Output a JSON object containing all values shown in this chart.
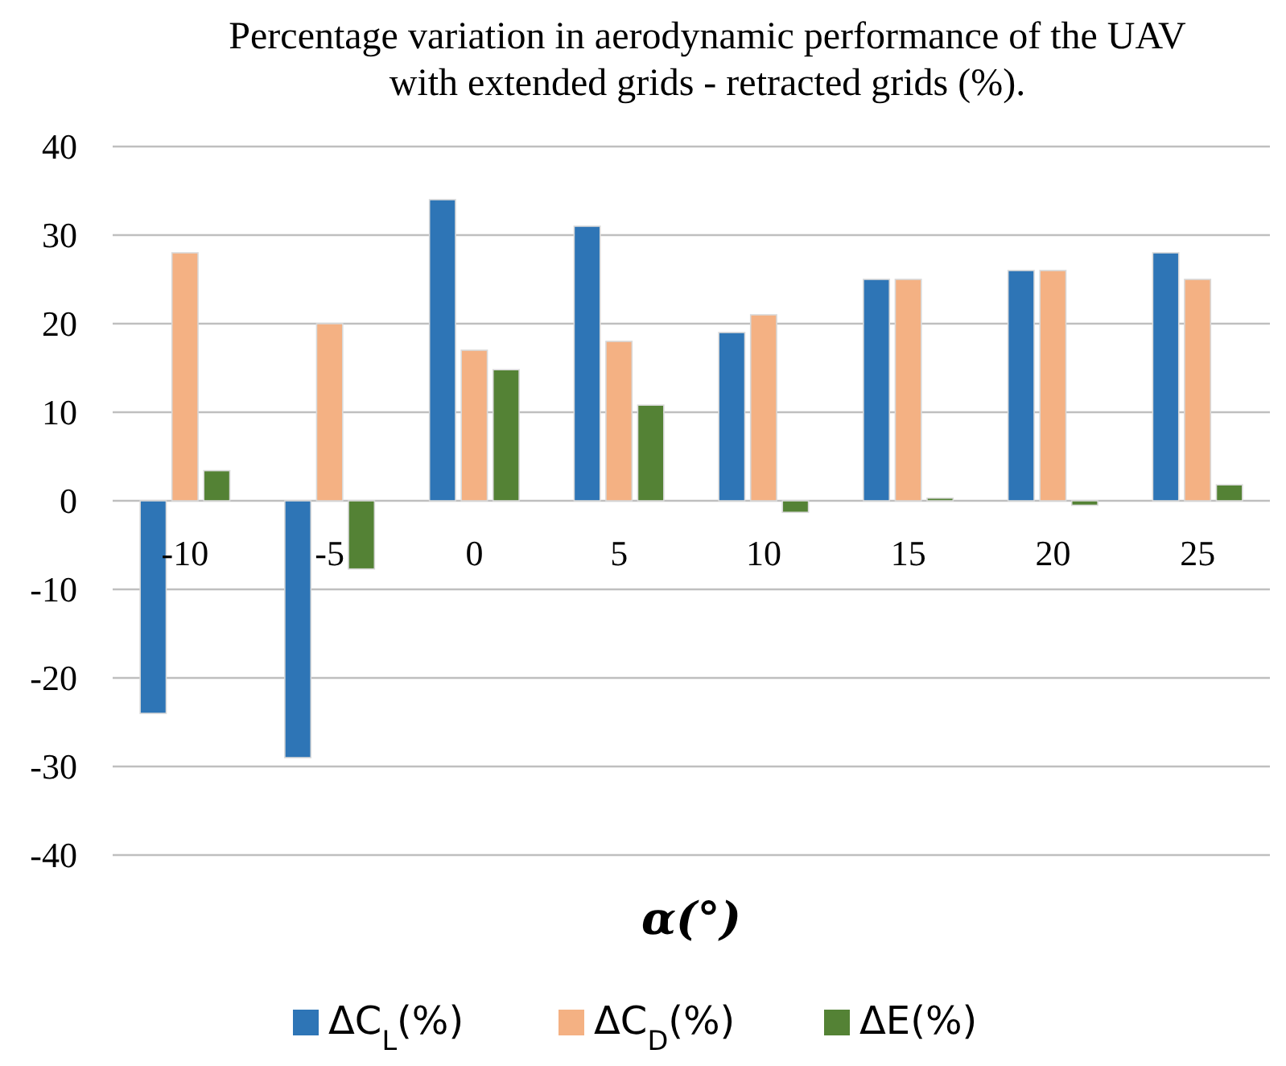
{
  "chart_data": {
    "type": "bar",
    "title": "Percentage variation in aerodynamic performance of the UAV with extended grids - retracted grids (%).",
    "xlabel": "α(°)",
    "categories": [
      "-10",
      "-5",
      "0",
      "5",
      "10",
      "15",
      "20",
      "25"
    ],
    "series": [
      {
        "name": "ΔC$_{L}$(%)",
        "color": "#2e75b6",
        "values": [
          -24,
          -29,
          34,
          31,
          19,
          25,
          26,
          28
        ]
      },
      {
        "name": "ΔC$_{D}$(%)",
        "color": "#f4b183",
        "values": [
          28,
          20,
          17,
          18,
          21,
          25,
          26,
          25
        ]
      },
      {
        "name": "ΔE(%)",
        "color": "#548235",
        "values": [
          3.4,
          -7.7,
          14.8,
          10.8,
          -1.3,
          0.3,
          -0.5,
          1.8
        ]
      }
    ],
    "ylim": [
      -40,
      40
    ],
    "yticks": [
      -40,
      -30,
      -20,
      -10,
      0,
      10,
      20,
      30,
      40
    ],
    "grid": "y",
    "legend": "bottom"
  }
}
